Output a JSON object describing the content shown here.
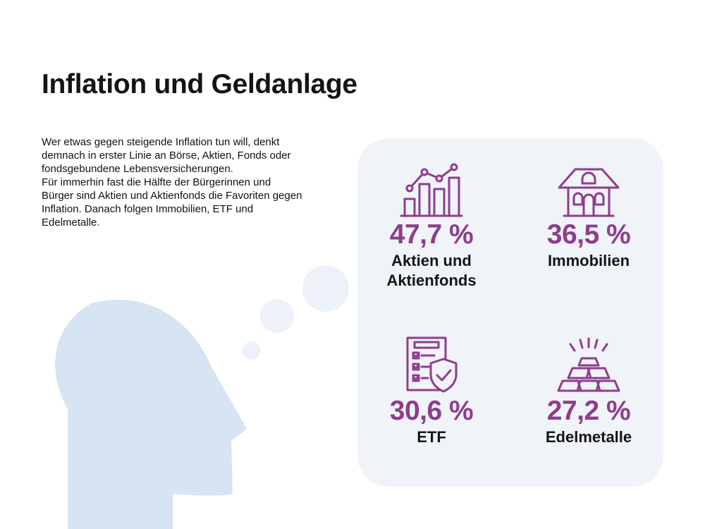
{
  "page": {
    "title": "Inflation und Geldanlage",
    "intro": [
      "Wer etwas gegen steigende Inflation tun will, denkt demnach in erster Linie an Börse, Aktien, Fonds oder fondsgebundene Lebensversicherungen.",
      "Für immerhin fast die Hälfte der Bürgerinnen und Bürger sind Aktien und Aktienfonds die Favoriten gegen Inflation. Danach folgen Immobilien, ETF und Edelmetalle."
    ]
  },
  "colors": {
    "accent": "#8e3d8c",
    "panel_bg": "#f0f3f8",
    "head": "#d6e4f3",
    "bubble": "#edf2f8"
  },
  "stats": [
    {
      "icon": "bar-chart-growth-icon",
      "value": "47,7 %",
      "label_lines": [
        "Aktien und",
        "Aktienfonds"
      ]
    },
    {
      "icon": "house-icon",
      "value": "36,5 %",
      "label_lines": [
        "Immobilien"
      ]
    },
    {
      "icon": "document-shield-checklist-icon",
      "value": "30,6 %",
      "label_lines": [
        "ETF"
      ]
    },
    {
      "icon": "gold-bars-icon",
      "value": "27,2 %",
      "label_lines": [
        "Edelmetalle"
      ]
    }
  ]
}
